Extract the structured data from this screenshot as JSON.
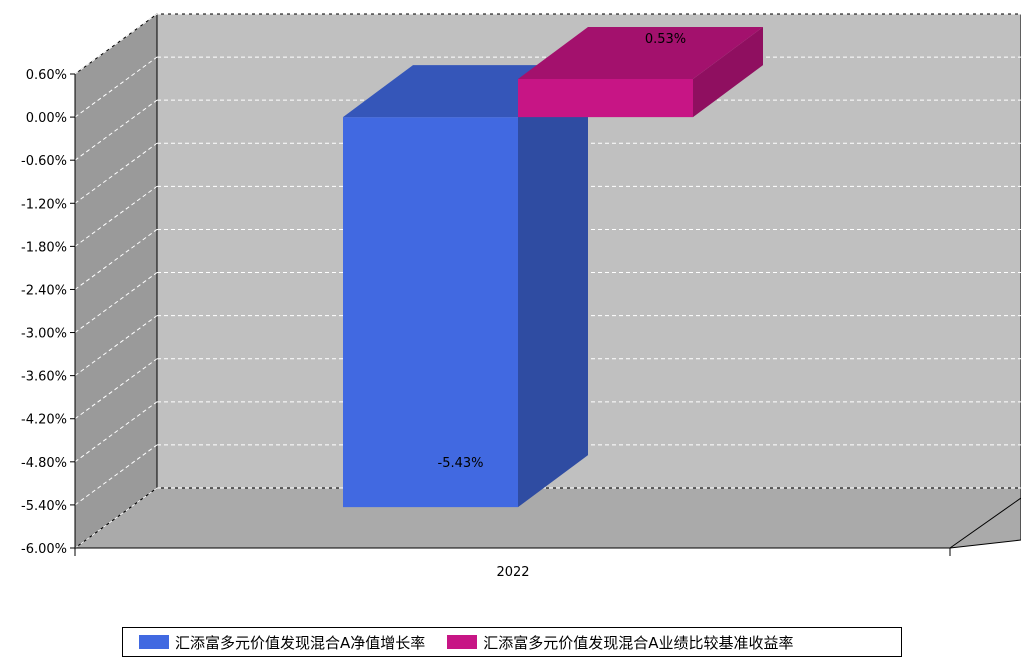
{
  "chart_data": {
    "type": "bar",
    "categories": [
      "2022"
    ],
    "series": [
      {
        "name": "汇添富多元价值发现混合A净值增长率",
        "values": [
          -5.43
        ],
        "label": "-5.43%",
        "color": "#4169e1"
      },
      {
        "name": "汇添富多元价值发现混合A业绩比较基准收益率",
        "values": [
          0.53
        ],
        "label": "0.53%",
        "color": "#c71585"
      }
    ],
    "y_ticks": [
      "0.60%",
      "0.00%",
      "-0.60%",
      "-1.20%",
      "-1.80%",
      "-2.40%",
      "-3.00%",
      "-3.60%",
      "-4.20%",
      "-4.80%",
      "-5.40%",
      "-6.00%"
    ],
    "ylim": [
      -6.0,
      0.6
    ],
    "grid": true,
    "three_d": true,
    "legend_position": "bottom"
  }
}
